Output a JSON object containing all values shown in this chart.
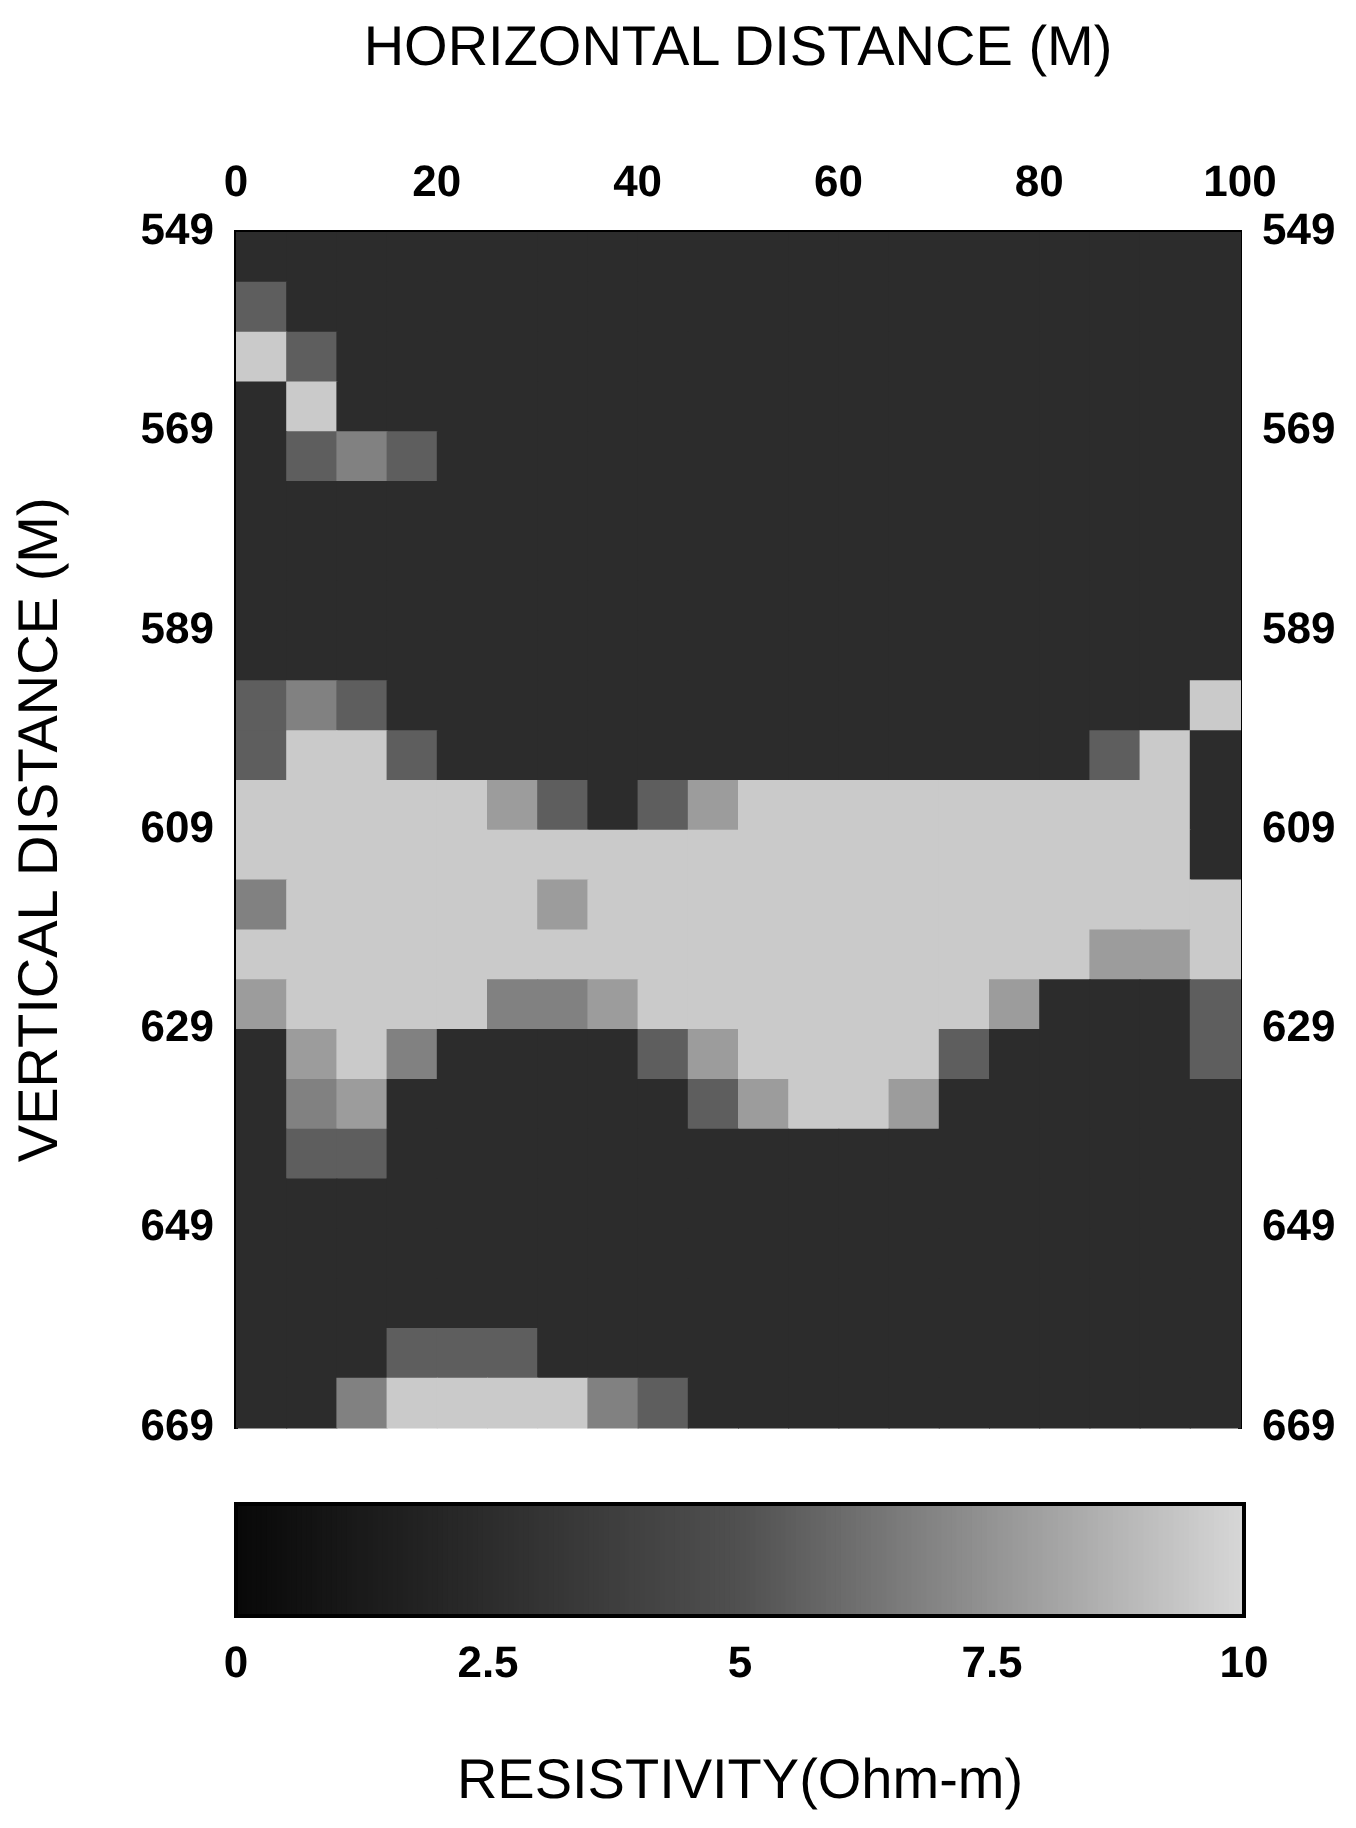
{
  "chart_data": {
    "type": "heatmap",
    "xlabel": "HORIZONTAL DISTANCE (M)",
    "ylabel": "VERTICAL DISTANCE (M)",
    "clabel": "RESISTIVITY(Ohm-m)",
    "xlim": [
      0,
      100
    ],
    "xticks": [
      0,
      20,
      40,
      60,
      80,
      100
    ],
    "ylim": [
      669,
      549
    ],
    "yticks": [
      549,
      569,
      589,
      609,
      629,
      649,
      669
    ],
    "y2lim": [
      669,
      549
    ],
    "y2ticks": [
      549,
      569,
      589,
      609,
      629,
      649,
      669
    ],
    "clim": [
      0,
      10
    ],
    "cticks": [
      0,
      2.5,
      5,
      7.5,
      10
    ],
    "cells": [
      [
        2.5,
        2.5,
        2.5,
        2.5,
        2.5,
        2.5,
        2.5,
        2.5,
        2.5,
        2.5,
        2.5,
        2.5,
        2.5,
        2.5,
        2.5,
        2.5,
        2.5,
        2.5,
        2.5,
        2.5
      ],
      [
        5.5,
        2.5,
        2.5,
        2.5,
        2.5,
        2.5,
        2.5,
        2.5,
        2.5,
        2.5,
        2.5,
        2.5,
        2.5,
        2.5,
        2.5,
        2.5,
        2.5,
        2.5,
        2.5,
        2.5
      ],
      [
        9.5,
        5.5,
        2.5,
        2.5,
        2.5,
        2.5,
        2.5,
        2.5,
        2.5,
        2.5,
        2.5,
        2.5,
        2.5,
        2.5,
        2.5,
        2.5,
        2.5,
        2.5,
        2.5,
        2.5
      ],
      [
        2.5,
        9.5,
        2.5,
        2.5,
        2.5,
        2.5,
        2.5,
        2.5,
        2.5,
        2.5,
        2.5,
        2.5,
        2.5,
        2.5,
        2.5,
        2.5,
        2.5,
        2.5,
        2.5,
        2.5
      ],
      [
        2.5,
        5.5,
        6.8,
        5.5,
        2.5,
        2.5,
        2.5,
        2.5,
        2.5,
        2.5,
        2.5,
        2.5,
        2.5,
        2.5,
        2.5,
        2.5,
        2.5,
        2.5,
        2.5,
        2.5
      ],
      [
        2.5,
        2.5,
        2.5,
        2.5,
        2.5,
        2.5,
        2.5,
        2.5,
        2.5,
        2.5,
        2.5,
        2.5,
        2.5,
        2.5,
        2.5,
        2.5,
        2.5,
        2.5,
        2.5,
        2.5
      ],
      [
        2.5,
        2.5,
        2.5,
        2.5,
        2.5,
        2.5,
        2.5,
        2.5,
        2.5,
        2.5,
        2.5,
        2.5,
        2.5,
        2.5,
        2.5,
        2.5,
        2.5,
        2.5,
        2.5,
        2.5
      ],
      [
        2.5,
        2.5,
        2.5,
        2.5,
        2.5,
        2.5,
        2.5,
        2.5,
        2.5,
        2.5,
        2.5,
        2.5,
        2.5,
        2.5,
        2.5,
        2.5,
        2.5,
        2.5,
        2.5,
        2.5
      ],
      [
        2.5,
        2.5,
        2.5,
        2.5,
        2.5,
        2.5,
        2.5,
        2.5,
        2.5,
        2.5,
        2.5,
        2.5,
        2.5,
        2.5,
        2.5,
        2.5,
        2.5,
        2.5,
        2.5,
        2.5
      ],
      [
        5.5,
        6.8,
        5.5,
        2.5,
        2.5,
        2.5,
        2.5,
        2.5,
        2.5,
        2.5,
        2.5,
        2.5,
        2.5,
        2.5,
        2.5,
        2.5,
        2.5,
        2.5,
        2.5,
        9.5
      ],
      [
        5.5,
        9.5,
        9.5,
        5.5,
        2.5,
        2.5,
        2.5,
        2.5,
        2.5,
        2.5,
        2.5,
        2.5,
        2.5,
        2.5,
        2.5,
        2.5,
        2.5,
        5.5,
        9.5,
        2.5
      ],
      [
        9.5,
        9.5,
        9.5,
        9.5,
        9.5,
        7.8,
        5.5,
        2.5,
        5.5,
        7.8,
        9.5,
        9.5,
        9.5,
        9.5,
        9.5,
        9.5,
        9.5,
        9.5,
        9.5,
        2.5
      ],
      [
        9.5,
        9.5,
        9.5,
        9.5,
        9.5,
        9.5,
        9.5,
        9.5,
        9.5,
        9.5,
        9.5,
        9.5,
        9.5,
        9.5,
        9.5,
        9.5,
        9.5,
        9.5,
        9.5,
        2.5
      ],
      [
        6.8,
        9.5,
        9.5,
        9.5,
        9.5,
        9.5,
        7.8,
        9.5,
        9.5,
        9.5,
        9.5,
        9.5,
        9.5,
        9.5,
        9.5,
        9.5,
        9.5,
        9.5,
        9.5,
        9.5
      ],
      [
        9.5,
        9.5,
        9.5,
        9.5,
        9.5,
        9.5,
        9.5,
        9.5,
        9.5,
        9.5,
        9.5,
        9.5,
        9.5,
        9.5,
        9.5,
        9.5,
        9.5,
        7.8,
        7.8,
        9.5
      ],
      [
        7.8,
        9.5,
        9.5,
        9.5,
        9.5,
        6.8,
        6.8,
        7.8,
        9.5,
        9.5,
        9.5,
        9.5,
        9.5,
        9.5,
        9.5,
        7.8,
        2.5,
        2.5,
        2.5,
        5.5
      ],
      [
        2.5,
        7.8,
        9.5,
        6.8,
        2.5,
        2.5,
        2.5,
        2.5,
        5.5,
        7.8,
        9.5,
        9.5,
        9.5,
        9.5,
        5.5,
        2.5,
        2.5,
        2.5,
        2.5,
        5.5
      ],
      [
        2.5,
        6.8,
        7.8,
        2.5,
        2.5,
        2.5,
        2.5,
        2.5,
        2.5,
        5.5,
        7.8,
        9.5,
        9.5,
        7.8,
        2.5,
        2.5,
        2.5,
        2.5,
        2.5,
        2.5
      ],
      [
        2.5,
        5.5,
        5.5,
        2.5,
        2.5,
        2.5,
        2.5,
        2.5,
        2.5,
        2.5,
        2.5,
        2.5,
        2.5,
        2.5,
        2.5,
        2.5,
        2.5,
        2.5,
        2.5,
        2.5
      ],
      [
        2.5,
        2.5,
        2.5,
        2.5,
        2.5,
        2.5,
        2.5,
        2.5,
        2.5,
        2.5,
        2.5,
        2.5,
        2.5,
        2.5,
        2.5,
        2.5,
        2.5,
        2.5,
        2.5,
        2.5
      ],
      [
        2.5,
        2.5,
        2.5,
        2.5,
        2.5,
        2.5,
        2.5,
        2.5,
        2.5,
        2.5,
        2.5,
        2.5,
        2.5,
        2.5,
        2.5,
        2.5,
        2.5,
        2.5,
        2.5,
        2.5
      ],
      [
        2.5,
        2.5,
        2.5,
        2.5,
        2.5,
        2.5,
        2.5,
        2.5,
        2.5,
        2.5,
        2.5,
        2.5,
        2.5,
        2.5,
        2.5,
        2.5,
        2.5,
        2.5,
        2.5,
        2.5
      ],
      [
        2.5,
        2.5,
        2.5,
        5.5,
        5.5,
        5.5,
        2.5,
        2.5,
        2.5,
        2.5,
        2.5,
        2.5,
        2.5,
        2.5,
        2.5,
        2.5,
        2.5,
        2.5,
        2.5,
        2.5
      ],
      [
        2.5,
        2.5,
        6.8,
        9.5,
        9.5,
        9.5,
        9.5,
        6.8,
        5.5,
        2.5,
        2.5,
        2.5,
        2.5,
        2.5,
        2.5,
        2.5,
        2.5,
        2.5,
        2.5,
        2.5
      ]
    ]
  }
}
